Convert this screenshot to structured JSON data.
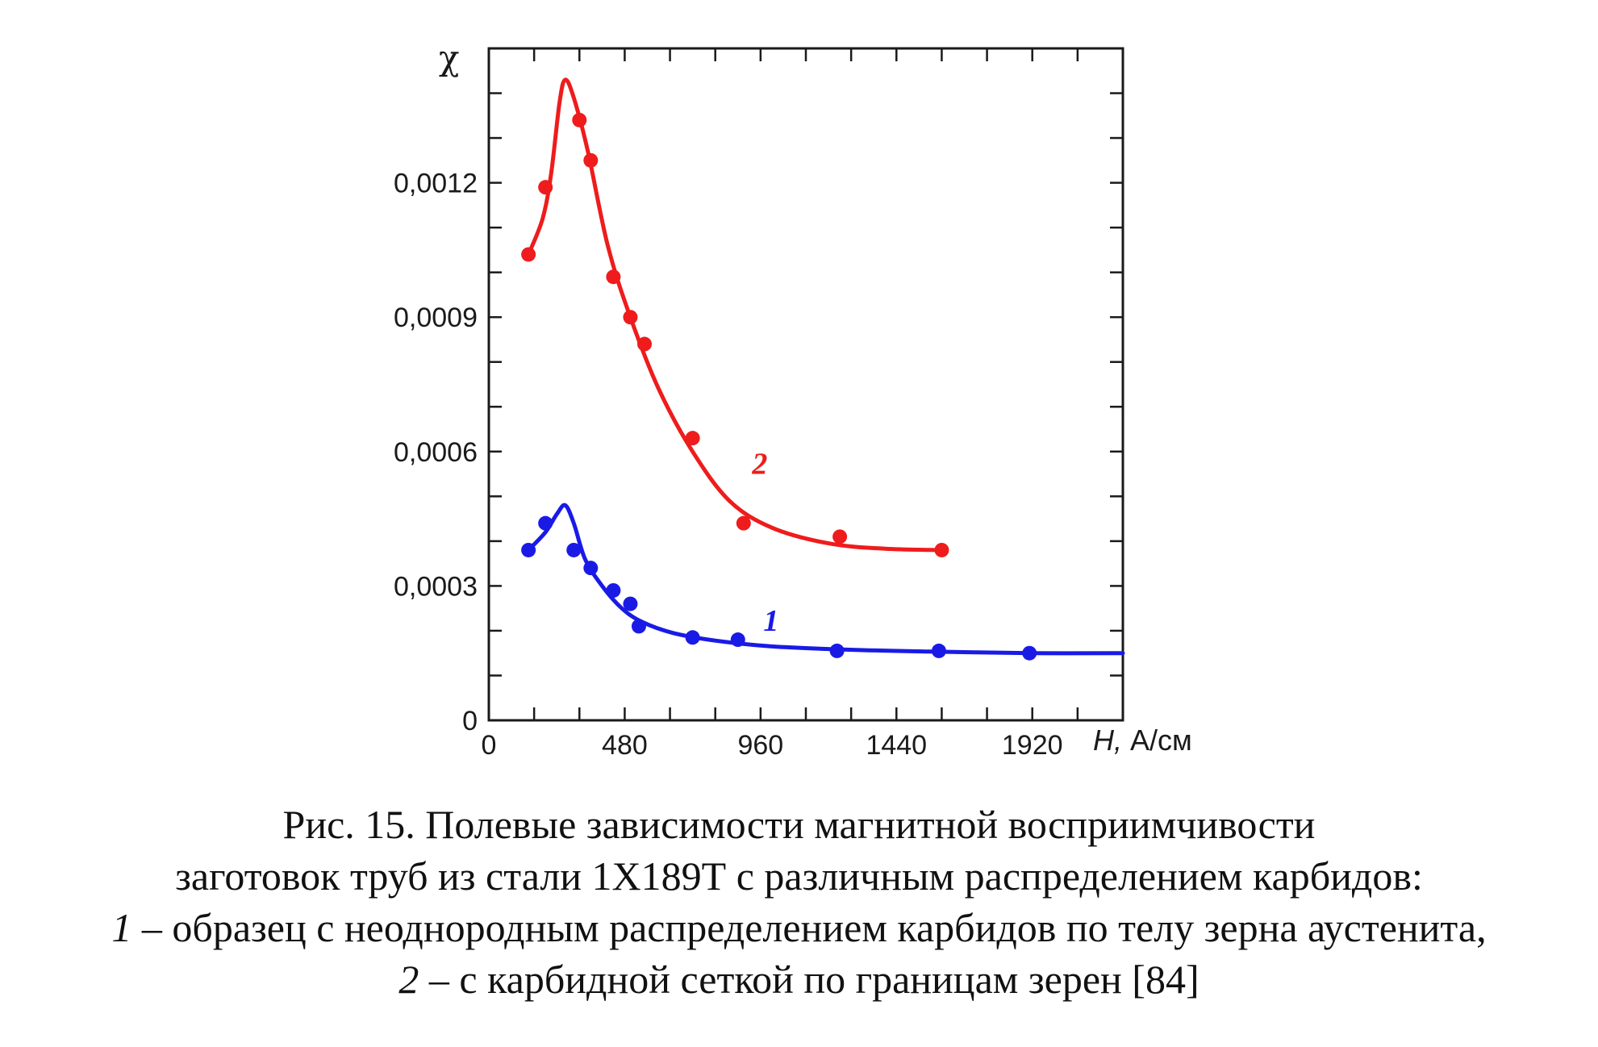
{
  "chart_data": {
    "type": "line",
    "ylabel": "χ",
    "xlabel_symbol": "H,",
    "xlabel_unit": "А/см",
    "xlim": [
      0,
      2240
    ],
    "ylim": [
      0,
      0.0015
    ],
    "x_ticks": [
      {
        "value": 0,
        "label": "0"
      },
      {
        "value": 480,
        "label": "480"
      },
      {
        "value": 960,
        "label": "960"
      },
      {
        "value": 1440,
        "label": "1440"
      },
      {
        "value": 1920,
        "label": "1920"
      }
    ],
    "y_ticks": [
      {
        "value": 0,
        "label": "0"
      },
      {
        "value": 0.0003,
        "label": "0,0003"
      },
      {
        "value": 0.0006,
        "label": "0,0006"
      },
      {
        "value": 0.0009,
        "label": "0,0009"
      },
      {
        "value": 0.0012,
        "label": "0,0012"
      }
    ],
    "grid": false,
    "series": [
      {
        "name": "1",
        "color": "#1a1ae6",
        "points": [
          [
            140,
            0.00038
          ],
          [
            200,
            0.00044
          ],
          [
            300,
            0.00038
          ],
          [
            360,
            0.00034
          ],
          [
            440,
            0.00029
          ],
          [
            500,
            0.00026
          ],
          [
            530,
            0.00021
          ],
          [
            720,
            0.000185
          ],
          [
            880,
            0.00018
          ],
          [
            1230,
            0.000155
          ],
          [
            1590,
            0.000155
          ],
          [
            1910,
            0.00015
          ]
        ],
        "curve": [
          [
            140,
            0.00038
          ],
          [
            200,
            0.00042
          ],
          [
            240,
            0.00046
          ],
          [
            270,
            0.00048
          ],
          [
            300,
            0.00044
          ],
          [
            340,
            0.00036
          ],
          [
            400,
            0.0003
          ],
          [
            470,
            0.00025
          ],
          [
            540,
            0.00022
          ],
          [
            650,
            0.000195
          ],
          [
            800,
            0.000178
          ],
          [
            1000,
            0.000165
          ],
          [
            1300,
            0.000157
          ],
          [
            1600,
            0.000153
          ],
          [
            1900,
            0.00015
          ],
          [
            2240,
            0.00015
          ]
        ]
      },
      {
        "name": "2",
        "color": "#ee1c1c",
        "points": [
          [
            140,
            0.00104
          ],
          [
            200,
            0.00119
          ],
          [
            320,
            0.00134
          ],
          [
            360,
            0.00125
          ],
          [
            440,
            0.00099
          ],
          [
            500,
            0.0009
          ],
          [
            550,
            0.00084
          ],
          [
            720,
            0.00063
          ],
          [
            900,
            0.00044
          ],
          [
            1240,
            0.00041
          ],
          [
            1600,
            0.00038
          ]
        ],
        "curve": [
          [
            140,
            0.00104
          ],
          [
            190,
            0.00112
          ],
          [
            220,
            0.00122
          ],
          [
            250,
            0.00138
          ],
          [
            270,
            0.00143
          ],
          [
            300,
            0.00139
          ],
          [
            350,
            0.00127
          ],
          [
            420,
            0.00106
          ],
          [
            500,
            0.0009
          ],
          [
            600,
            0.00074
          ],
          [
            720,
            0.0006
          ],
          [
            850,
            0.00049
          ],
          [
            1000,
            0.00043
          ],
          [
            1200,
            0.000395
          ],
          [
            1400,
            0.000383
          ],
          [
            1600,
            0.00038
          ]
        ]
      }
    ]
  },
  "caption": {
    "line1": "Рис. 15. Полевые зависимости магнитной восприимчивости",
    "line2": "заготовок труб из стали 1Х189Т с различным распределением карбидов:",
    "line3_num": "1",
    "line3_text": " – образец с неоднородным распределением карбидов по телу зерна аустенита,",
    "line4_num": "2",
    "line4_text": " – с карбидной сеткой по границам зерен [84]"
  }
}
